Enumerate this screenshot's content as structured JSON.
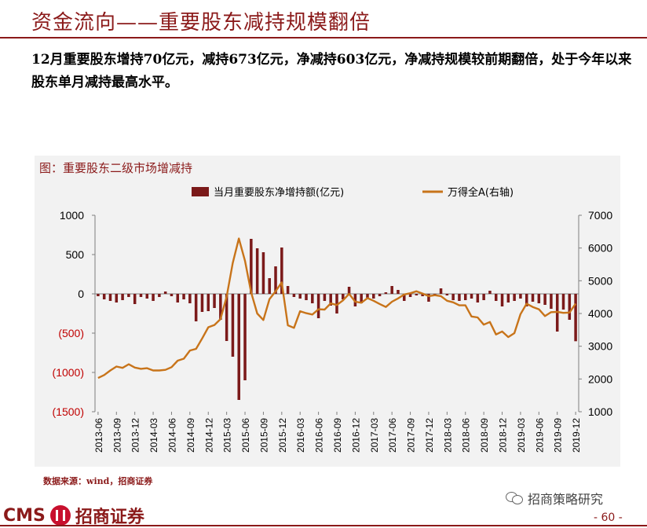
{
  "slide": {
    "title": "资金流向——重要股东减持规模翻倍",
    "summary": "12月重要股东增持70亿元，减持673亿元，净减持603亿元，净减持规模较前期翻倍，处于今年以来股东单月减持最高水平。",
    "chart_title": "图：重要股东二级市场增减持",
    "source": "数据来源：wind，招商证券",
    "footer_logo_latin": "CMS",
    "footer_logo_cn": "招商证券",
    "wechat_account": "招商策略研究",
    "page_number": "- 60 -"
  },
  "colors": {
    "bar": "#7b1a1a",
    "line": "#c8741a",
    "accent": "#8b1a1a",
    "left_tick_negative": "#c00000"
  },
  "chart_data": {
    "type": "bar+line",
    "title": "图：重要股东二级市场增减持",
    "legend_position": "top",
    "left_axis": {
      "ticks": [
        "1000",
        "500",
        "0",
        "(500)",
        "(1000)",
        "(1500)"
      ],
      "ylim": [
        -1500,
        1000
      ]
    },
    "right_axis": {
      "ticks": [
        "7000",
        "6000",
        "5000",
        "4000",
        "3000",
        "2000",
        "1000"
      ],
      "ylim": [
        1000,
        7000
      ]
    },
    "x_tick_labels": [
      "2013-06",
      "2013-09",
      "2013-12",
      "2014-03",
      "2014-06",
      "2014-09",
      "2014-12",
      "2015-03",
      "2015-06",
      "2015-09",
      "2015-12",
      "2016-03",
      "2016-06",
      "2016-09",
      "2016-12",
      "2017-03",
      "2017-06",
      "2017-09",
      "2017-12",
      "2018-03",
      "2018-06",
      "2018-09",
      "2018-12",
      "2019-03",
      "2019-06",
      "2019-09",
      "2019-12"
    ],
    "months": [
      "2013-06",
      "2013-07",
      "2013-08",
      "2013-09",
      "2013-10",
      "2013-11",
      "2013-12",
      "2014-01",
      "2014-02",
      "2014-03",
      "2014-04",
      "2014-05",
      "2014-06",
      "2014-07",
      "2014-08",
      "2014-09",
      "2014-10",
      "2014-11",
      "2014-12",
      "2015-01",
      "2015-02",
      "2015-03",
      "2015-04",
      "2015-05",
      "2015-06",
      "2015-07",
      "2015-08",
      "2015-09",
      "2015-10",
      "2015-11",
      "2015-12",
      "2016-01",
      "2016-02",
      "2016-03",
      "2016-04",
      "2016-05",
      "2016-06",
      "2016-07",
      "2016-08",
      "2016-09",
      "2016-10",
      "2016-11",
      "2016-12",
      "2017-01",
      "2017-02",
      "2017-03",
      "2017-04",
      "2017-05",
      "2017-06",
      "2017-07",
      "2017-08",
      "2017-09",
      "2017-10",
      "2017-11",
      "2017-12",
      "2018-01",
      "2018-02",
      "2018-03",
      "2018-04",
      "2018-05",
      "2018-06",
      "2018-07",
      "2018-08",
      "2018-09",
      "2018-10",
      "2018-11",
      "2018-12",
      "2019-01",
      "2019-02",
      "2019-03",
      "2019-04",
      "2019-05",
      "2019-06",
      "2019-07",
      "2019-08",
      "2019-09",
      "2019-10",
      "2019-11",
      "2019-12"
    ],
    "series": [
      {
        "name": "当月重要股东净增持额(亿元)",
        "type": "bar",
        "axis": "left",
        "values": [
          -30,
          -70,
          -90,
          -110,
          -80,
          -40,
          -130,
          -40,
          -60,
          -90,
          -40,
          30,
          -30,
          -110,
          -70,
          -120,
          -350,
          -230,
          -220,
          -180,
          -330,
          -600,
          -800,
          -1350,
          -1100,
          700,
          580,
          530,
          200,
          350,
          590,
          100,
          -40,
          -60,
          -80,
          -120,
          -310,
          -90,
          -150,
          -250,
          -70,
          90,
          -160,
          -120,
          -50,
          -60,
          -30,
          20,
          100,
          50,
          -90,
          -40,
          -20,
          -30,
          -100,
          -30,
          70,
          -20,
          -80,
          -90,
          -80,
          -60,
          -110,
          -80,
          40,
          -90,
          -160,
          -110,
          -90,
          -60,
          -160,
          -100,
          -120,
          -140,
          -190,
          -480,
          -200,
          -330,
          -603
        ]
      },
      {
        "name": "万得全A(右轴)",
        "type": "line",
        "axis": "right",
        "values": [
          2030,
          2120,
          2260,
          2380,
          2340,
          2450,
          2350,
          2310,
          2330,
          2260,
          2260,
          2280,
          2360,
          2560,
          2620,
          2870,
          2920,
          3240,
          3580,
          3650,
          3830,
          4510,
          5540,
          6290,
          5610,
          4650,
          4000,
          3800,
          4440,
          4680,
          4950,
          3640,
          3560,
          4070,
          4010,
          3970,
          4130,
          4120,
          4310,
          4260,
          4400,
          4600,
          4360,
          4330,
          4470,
          4390,
          4290,
          4200,
          4360,
          4460,
          4580,
          4620,
          4680,
          4610,
          4530,
          4560,
          4530,
          4390,
          4340,
          4250,
          4250,
          3910,
          3880,
          3660,
          3740,
          3360,
          3450,
          3280,
          3400,
          3980,
          4300,
          4200,
          4130,
          3920,
          4040,
          4050,
          4020,
          4030,
          4300
        ]
      }
    ]
  }
}
